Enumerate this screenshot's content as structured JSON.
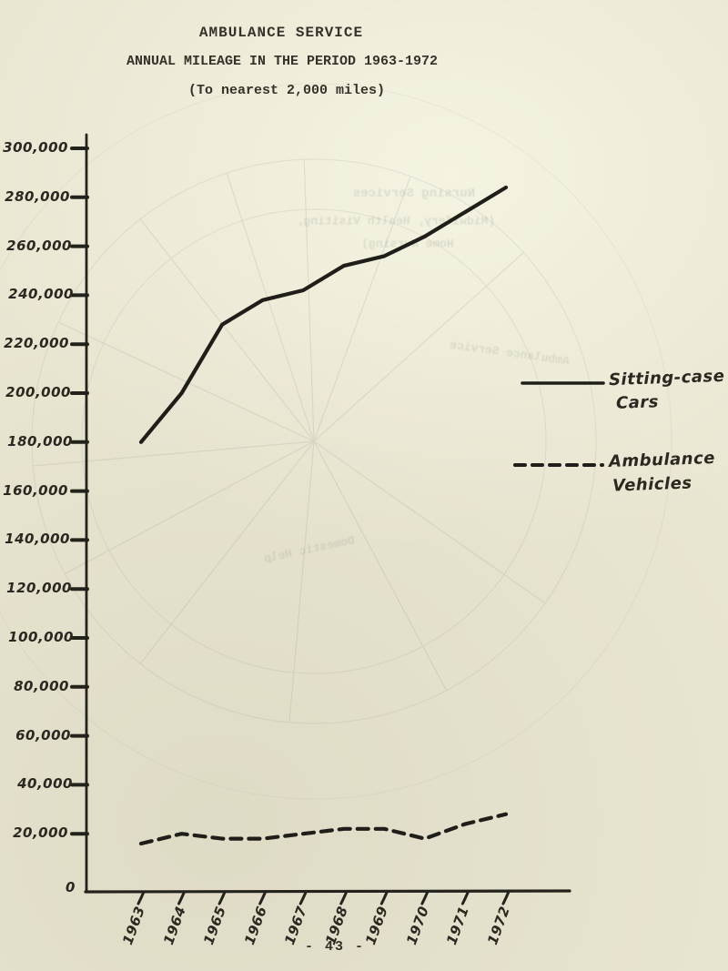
{
  "header": {
    "title": "AMBULANCE SERVICE",
    "subtitle": "ANNUAL MILEAGE IN THE PERIOD 1963-1972",
    "note": "(To nearest 2,000 miles)"
  },
  "footer": {
    "page_number": "- 43 -"
  },
  "chart_data": {
    "type": "line",
    "title": "AMBULANCE SERVICE",
    "subtitle": "ANNUAL MILEAGE IN THE PERIOD 1963-1972",
    "note": "(To nearest 2,000 miles)",
    "x": [
      1963,
      1964,
      1965,
      1966,
      1967,
      1968,
      1969,
      1970,
      1971,
      1972
    ],
    "x_tick_labels": [
      "1963",
      "1964",
      "1965",
      "1966",
      "1967",
      "1968",
      "1969",
      "1970",
      "1971",
      "1972"
    ],
    "series": [
      {
        "name": "Sitting-case Cars",
        "style": "solid",
        "values": [
          180000,
          200000,
          228000,
          238000,
          242000,
          252000,
          256000,
          264000,
          274000,
          284000
        ]
      },
      {
        "name": "Ambulance Vehicles",
        "style": "dashed",
        "values": [
          16000,
          20000,
          18000,
          18000,
          20000,
          22000,
          22000,
          18000,
          24000,
          28000
        ]
      }
    ],
    "ylim": [
      0,
      300000
    ],
    "ytick_step": 20000,
    "y_tick_labels": [
      "300,000",
      "280,000",
      "260,000",
      "240,000",
      "220,000",
      "200,000",
      "180,000",
      "160,000",
      "140,000",
      "120,000",
      "100,000",
      "80,000",
      "60,000",
      "40,000",
      "20,000"
    ],
    "zero_label": "0",
    "grid": false,
    "legend_position": "right-middle",
    "legend": [
      {
        "line1": "Sitting-case",
        "line2": "Cars",
        "style": "solid"
      },
      {
        "line1": "Ambulance",
        "line2": "Vehicles",
        "style": "dashed"
      }
    ],
    "ink_color": "#23221c",
    "paper_color": "#e9e6d2"
  },
  "bleed_through": {
    "labels": [
      {
        "text": "Nursing Services"
      },
      {
        "text": "(Midwifery, Health Visiting,"
      },
      {
        "text": "Home Nursing)"
      },
      {
        "text": "Ambulance Service"
      },
      {
        "text": "Domestic Help"
      }
    ]
  }
}
